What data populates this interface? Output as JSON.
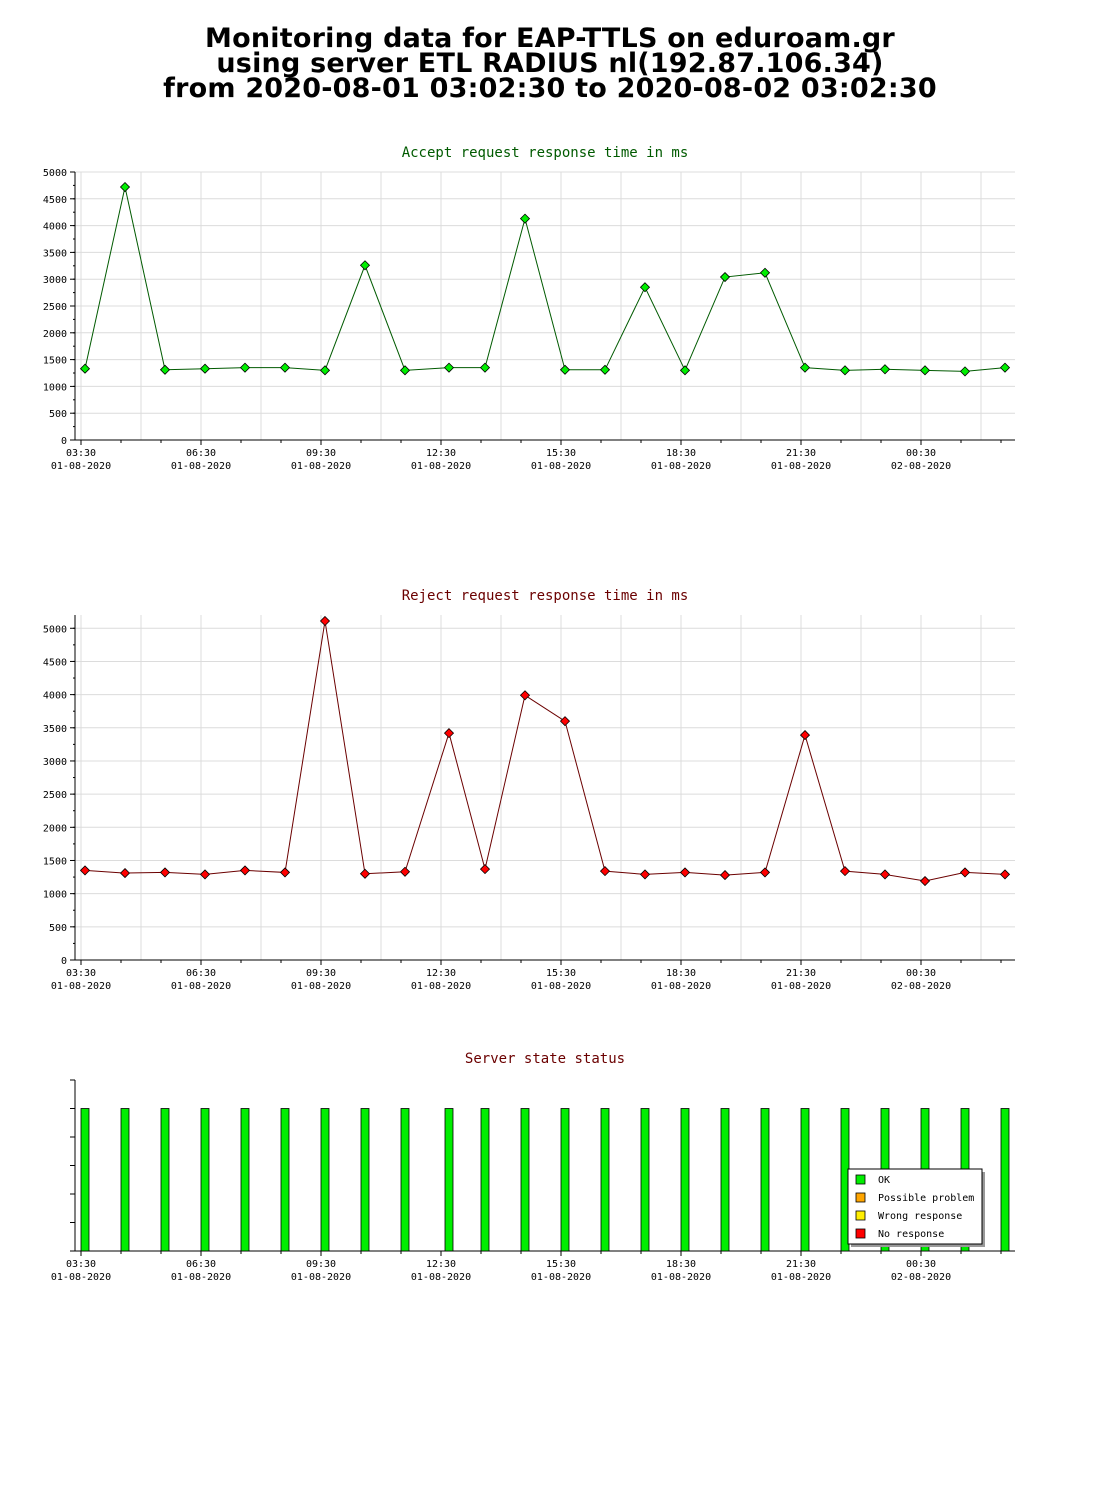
{
  "header": {
    "line1": "Monitoring data for EAP-TTLS on eduroam.gr",
    "line2": "using server ETL RADIUS nl(192.87.106.34)",
    "line3": "from 2020-08-01 03:02:30 to 2020-08-02 03:02:30"
  },
  "colors": {
    "accept_title": "#005a00",
    "reject_title": "#6b0000",
    "status_title": "#6b0000",
    "accept_line": "#005a00",
    "accept_marker": "#00ee00",
    "reject_line": "#6b0000",
    "reject_marker": "#ff0000",
    "ok": "#00ee00",
    "possible_problem": "#ffa500",
    "wrong_response": "#ffee00",
    "no_response": "#ff0000",
    "grid": "#dcdcdc"
  },
  "x_axis": {
    "ticks": [
      {
        "time": "03:30",
        "date": "01-08-2020",
        "hour": 0
      },
      {
        "time": "06:30",
        "date": "01-08-2020",
        "hour": 3
      },
      {
        "time": "09:30",
        "date": "01-08-2020",
        "hour": 6
      },
      {
        "time": "12:30",
        "date": "01-08-2020",
        "hour": 9
      },
      {
        "time": "15:30",
        "date": "01-08-2020",
        "hour": 12
      },
      {
        "time": "18:30",
        "date": "01-08-2020",
        "hour": 15
      },
      {
        "time": "21:30",
        "date": "01-08-2020",
        "hour": 18
      },
      {
        "time": "00:30",
        "date": "02-08-2020",
        "hour": 21
      }
    ],
    "range_hours": [
      -0.15,
      23.35
    ]
  },
  "chart_data": [
    {
      "type": "line",
      "title": "Accept request response time in ms",
      "ylim": [
        0,
        5000
      ],
      "yticks": [
        0,
        500,
        1000,
        1500,
        2000,
        2500,
        3000,
        3500,
        4000,
        4500,
        5000
      ],
      "grid": true,
      "x": [
        0.1,
        1.1,
        2.1,
        3.1,
        4.1,
        5.1,
        6.1,
        7.1,
        8.1,
        9.2,
        10.1,
        11.1,
        12.1,
        13.1,
        14.1,
        15.1,
        16.1,
        17.1,
        18.1,
        19.1,
        20.1,
        21.1,
        22.1,
        23.1
      ],
      "series": [
        {
          "values": [
            1330,
            4720,
            1310,
            1330,
            1350,
            1350,
            1300,
            3260,
            1300,
            1350,
            1350,
            4130,
            1310,
            1310,
            2850,
            1300,
            3040,
            3120,
            1350,
            1300,
            1320,
            1300,
            1280,
            1350
          ]
        }
      ]
    },
    {
      "type": "line",
      "title": "Reject request response time in ms",
      "ylim": [
        0,
        5200
      ],
      "yticks": [
        0,
        500,
        1000,
        1500,
        2000,
        2500,
        3000,
        3500,
        4000,
        4500,
        5000
      ],
      "grid": true,
      "x": [
        0.1,
        1.1,
        2.1,
        3.1,
        4.1,
        5.1,
        6.1,
        7.1,
        8.1,
        9.2,
        10.1,
        11.1,
        12.1,
        13.1,
        14.1,
        15.1,
        16.1,
        17.1,
        18.1,
        19.1,
        20.1,
        21.1,
        22.1,
        23.1
      ],
      "series": [
        {
          "values": [
            1350,
            1310,
            1320,
            1290,
            1350,
            1320,
            5110,
            1300,
            1330,
            3420,
            1370,
            3990,
            3600,
            1340,
            1290,
            1320,
            1280,
            1320,
            3390,
            1340,
            1290,
            1190,
            1320,
            1290
          ]
        }
      ]
    },
    {
      "type": "bar",
      "title": "Server state status",
      "grid": false,
      "legend_position": "bottom-right",
      "legend": [
        {
          "label": "OK",
          "color": "#00ee00"
        },
        {
          "label": "Possible problem",
          "color": "#ffa500"
        },
        {
          "label": "Wrong response",
          "color": "#ffee00"
        },
        {
          "label": "No response",
          "color": "#ff0000"
        }
      ],
      "x": [
        0.1,
        1.1,
        2.1,
        3.1,
        4.1,
        5.1,
        6.1,
        7.1,
        8.1,
        9.2,
        10.1,
        11.1,
        12.1,
        13.1,
        14.1,
        15.1,
        16.1,
        17.1,
        18.1,
        19.1,
        20.1,
        21.1,
        22.1,
        23.1
      ],
      "states": [
        "OK",
        "OK",
        "OK",
        "OK",
        "OK",
        "OK",
        "OK",
        "OK",
        "OK",
        "OK",
        "OK",
        "OK",
        "OK",
        "OK",
        "OK",
        "OK",
        "OK",
        "OK",
        "OK",
        "OK",
        "OK",
        "OK",
        "OK",
        "OK"
      ]
    }
  ]
}
